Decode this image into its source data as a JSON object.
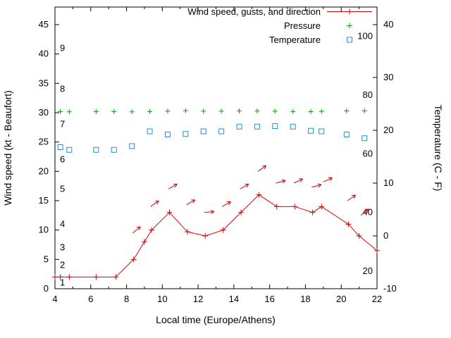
{
  "chart_data": {
    "type": "line",
    "title": "",
    "xlabel": "Local time (Europe/Athens)",
    "ylabel_left": "Wind speed (kt - Beaufort)",
    "ylabel_right": "Temperature (C - F)",
    "x_range": [
      4,
      22
    ],
    "left_range": [
      0,
      45
    ],
    "right_range_c": [
      -10,
      40
    ],
    "x_ticks": [
      4,
      6,
      8,
      10,
      12,
      14,
      16,
      18,
      20,
      22
    ],
    "x_minor_ticks": [
      5,
      7,
      9,
      11,
      13,
      15,
      17,
      19,
      21
    ],
    "left_ticks": [
      0,
      5,
      10,
      15,
      20,
      25,
      30,
      35,
      40,
      45
    ],
    "right_ticks": [
      -10,
      0,
      10,
      20,
      30,
      40
    ],
    "beaufort_labels": [
      {
        "label": "1",
        "kt": 1
      },
      {
        "label": "2",
        "kt": 4
      },
      {
        "label": "3",
        "kt": 7
      },
      {
        "label": "4",
        "kt": 11
      },
      {
        "label": "5",
        "kt": 17
      },
      {
        "label": "6",
        "kt": 22
      },
      {
        "label": "7",
        "kt": 28
      },
      {
        "label": "8",
        "kt": 34
      },
      {
        "label": "9",
        "kt": 41
      }
    ],
    "fahrenheit_labels": [
      {
        "label": "20",
        "f": 20
      },
      {
        "label": "40",
        "f": 40
      },
      {
        "label": "60",
        "f": 60
      },
      {
        "label": "80",
        "f": 80
      },
      {
        "label": "100",
        "f": 100
      }
    ],
    "legend": [
      {
        "label": "Wind speed, gusts, and direction",
        "series": "wind"
      },
      {
        "label": "Pressure",
        "series": "pressure"
      },
      {
        "label": "Temperature",
        "series": "temperature"
      }
    ],
    "colors": {
      "wind": "#dd0000",
      "pressure": "#00a000",
      "temperature": "#1e90d6",
      "axis": "#000000"
    },
    "series": {
      "wind": {
        "marker": "plus",
        "line": true,
        "x": [
          4.0,
          4.3,
          4.8,
          6.3,
          7.4,
          8.4,
          9.0,
          9.4,
          10.4,
          11.4,
          12.4,
          13.4,
          14.4,
          15.4,
          16.4,
          17.4,
          18.4,
          18.9,
          20.4,
          21.0,
          22.0
        ],
        "kt": [
          2,
          2,
          2,
          2,
          2,
          5,
          8,
          10,
          13,
          9.7,
          9,
          10,
          13,
          16,
          14,
          14,
          13,
          14,
          11,
          9,
          6.5
        ]
      },
      "pressure": {
        "marker": "plus",
        "line": false,
        "x": [
          4.3,
          4.8,
          6.3,
          7.3,
          8.3,
          9.3,
          10.3,
          11.3,
          12.3,
          13.3,
          14.3,
          15.3,
          16.3,
          17.3,
          18.3,
          18.9,
          20.3,
          21.3
        ],
        "inhg": [
          30.2,
          30.15,
          30.2,
          30.2,
          30.15,
          30.2,
          30.25,
          30.35,
          30.25,
          30.25,
          30.3,
          30.28,
          30.25,
          30.2,
          30.18,
          30.22,
          30.3,
          30.32
        ]
      },
      "temperature": {
        "marker": "square",
        "line": false,
        "x": [
          4.3,
          4.8,
          6.3,
          7.3,
          8.3,
          9.3,
          10.3,
          11.3,
          12.3,
          13.3,
          14.3,
          15.3,
          16.3,
          17.3,
          18.3,
          18.9,
          20.3,
          21.3
        ],
        "c": [
          16.8,
          16.3,
          16.3,
          16.3,
          17.0,
          19.8,
          19.2,
          19.3,
          19.8,
          19.8,
          20.7,
          20.7,
          20.8,
          20.7,
          19.9,
          19.8,
          19.2,
          18.5
        ]
      },
      "direction_arrows": [
        {
          "t": 8.35,
          "kt": 9.5,
          "angle": 40
        },
        {
          "t": 9.35,
          "kt": 14.0,
          "angle": 35
        },
        {
          "t": 10.35,
          "kt": 17.0,
          "angle": 30
        },
        {
          "t": 11.35,
          "kt": 14.3,
          "angle": 30
        },
        {
          "t": 12.35,
          "kt": 13.0,
          "angle": 5
        },
        {
          "t": 13.35,
          "kt": 14.0,
          "angle": 30
        },
        {
          "t": 14.35,
          "kt": 17.0,
          "angle": 30
        },
        {
          "t": 15.35,
          "kt": 20.0,
          "angle": 35
        },
        {
          "t": 16.35,
          "kt": 18.0,
          "angle": 15
        },
        {
          "t": 17.35,
          "kt": 18.0,
          "angle": 25
        },
        {
          "t": 18.35,
          "kt": 17.3,
          "angle": 15
        },
        {
          "t": 19.0,
          "kt": 18.2,
          "angle": 25
        },
        {
          "t": 20.35,
          "kt": 15.0,
          "angle": 35
        },
        {
          "t": 21.1,
          "kt": 12.5,
          "angle": 40
        }
      ]
    }
  }
}
